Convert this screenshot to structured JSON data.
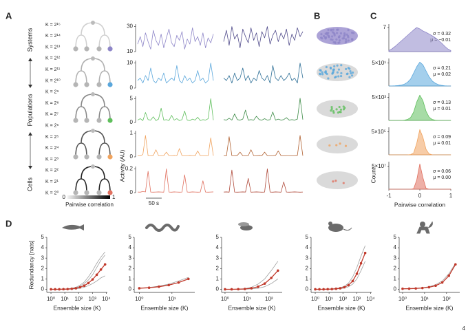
{
  "panel_labels": [
    "A",
    "B",
    "C",
    "D"
  ],
  "tree": {
    "k_labels": [
      "K = 2¹⁵",
      "K = 2¹⁴",
      "K = 2¹³",
      "K = 2¹²",
      "K = 2¹¹",
      "K = 2¹⁰",
      "K = 2⁹",
      "K = 2⁸",
      "K = 2⁷",
      "K = 2⁶",
      "K = 2⁵",
      "K = 2⁴",
      "K = 2³",
      "K = 2²",
      "K = 2¹",
      "K = 2⁰"
    ],
    "groups": [
      "Systems",
      "Populations",
      "Cells"
    ],
    "colorbar_lim": [
      0,
      1
    ],
    "colorbar_label": "Pairwise correlation"
  },
  "chart_data": [
    {
      "type": "line",
      "xlim": [
        0,
        240
      ],
      "ylim": [
        10,
        32
      ],
      "yticks": [
        10,
        30
      ],
      "color": "#8e86c8",
      "values": [
        16,
        22,
        14,
        25,
        18,
        12,
        27,
        19,
        15,
        24,
        13,
        21,
        28,
        17,
        14,
        23,
        19,
        26,
        12,
        20,
        16,
        29,
        18,
        22,
        15,
        25,
        13,
        21,
        17,
        24
      ]
    },
    {
      "type": "line",
      "xlim": [
        0,
        240
      ],
      "ylim": [
        10,
        32
      ],
      "color": "#4f4a8a",
      "values": [
        18,
        27,
        15,
        30,
        20,
        24,
        13,
        28,
        22,
        17,
        29,
        19,
        25,
        14,
        26,
        21,
        30,
        16,
        23,
        27,
        18,
        25,
        20,
        28,
        15,
        24,
        19,
        29,
        22,
        26
      ]
    },
    {
      "type": "line",
      "xlim": [
        0,
        240
      ],
      "ylim": [
        0,
        11
      ],
      "yticks": [
        0,
        10
      ],
      "color": "#5aa7dc",
      "values": [
        3,
        4,
        2,
        5,
        3,
        8,
        3,
        2,
        4,
        3,
        6,
        2,
        3,
        4,
        3,
        9,
        3,
        2,
        5,
        3,
        4,
        2,
        3,
        7,
        3,
        4,
        2,
        3,
        10,
        3
      ]
    },
    {
      "type": "line",
      "xlim": [
        0,
        240
      ],
      "ylim": [
        0,
        11
      ],
      "color": "#2c6e96",
      "values": [
        4,
        3,
        5,
        2,
        6,
        3,
        4,
        8,
        3,
        5,
        2,
        4,
        3,
        7,
        4,
        3,
        5,
        2,
        9,
        4,
        3,
        5,
        3,
        4,
        6,
        3,
        4,
        2,
        10,
        4
      ]
    },
    {
      "type": "line",
      "xlim": [
        0,
        240
      ],
      "ylim": [
        0,
        5.5
      ],
      "yticks": [
        0,
        5
      ],
      "color": "#5fbf5c",
      "values": [
        0.5,
        0.8,
        0.4,
        2.1,
        0.6,
        0.5,
        1.2,
        0.4,
        0.7,
        3.0,
        0.5,
        0.6,
        0.4,
        1.5,
        0.5,
        0.8,
        0.4,
        0.6,
        2.4,
        0.5,
        0.4,
        0.7,
        0.5,
        1.1,
        0.4,
        0.6,
        0.5,
        0.8,
        5.0,
        0.5
      ]
    },
    {
      "type": "line",
      "xlim": [
        0,
        240
      ],
      "ylim": [
        0,
        5.5
      ],
      "color": "#3a8a44",
      "values": [
        0.6,
        0.5,
        0.9,
        0.5,
        1.8,
        0.6,
        0.5,
        0.7,
        2.6,
        0.5,
        0.6,
        0.5,
        1.3,
        0.6,
        0.5,
        0.8,
        0.5,
        0.6,
        2.2,
        0.5,
        0.7,
        0.5,
        0.6,
        1.0,
        0.5,
        0.6,
        0.5,
        0.7,
        5.1,
        0.6
      ]
    },
    {
      "type": "line",
      "xlim": [
        0,
        240
      ],
      "ylim": [
        0,
        1.1
      ],
      "yticks": [
        0,
        1
      ],
      "color": "#f0a35e",
      "values": [
        0.05,
        0.04,
        0.1,
        0.9,
        0.05,
        0.04,
        0.06,
        0.3,
        0.05,
        0.04,
        0.05,
        0.2,
        0.05,
        0.04,
        0.06,
        0.05,
        0.35,
        0.05,
        0.04,
        0.05,
        0.06,
        0.05,
        0.04,
        0.25,
        0.05,
        0.05,
        0.04,
        0.05,
        0.8,
        0.05
      ]
    },
    {
      "type": "line",
      "xlim": [
        0,
        240
      ],
      "ylim": [
        0,
        1.1
      ],
      "color": "#b06030",
      "values": [
        0.05,
        0.04,
        0.85,
        0.05,
        0.04,
        0.06,
        0.2,
        0.05,
        0.04,
        0.05,
        0.3,
        0.05,
        0.04,
        0.06,
        0.05,
        0.2,
        0.05,
        0.04,
        0.05,
        0.06,
        0.25,
        0.05,
        0.04,
        0.05,
        0.05,
        0.04,
        0.05,
        0.06,
        0.9,
        0.05
      ]
    },
    {
      "type": "line",
      "xlim": [
        0,
        240
      ],
      "ylim": [
        0,
        0.22
      ],
      "yticks": [
        0,
        0.2
      ],
      "color": "#e0705f",
      "ylabel": "Activity (AU)",
      "scale_bar": {
        "value": 50,
        "label": "50 s"
      },
      "values": [
        0.005,
        0.004,
        0.01,
        0.006,
        0.18,
        0.005,
        0.004,
        0.005,
        0.006,
        0.005,
        0.004,
        0.2,
        0.005,
        0.004,
        0.006,
        0.005,
        0.004,
        0.005,
        0.15,
        0.005,
        0.004,
        0.006,
        0.005,
        0.004,
        0.005,
        0.1,
        0.005,
        0.004,
        0.005,
        0.006
      ]
    },
    {
      "type": "line",
      "xlim": [
        0,
        240
      ],
      "ylim": [
        0,
        0.22
      ],
      "color": "#b04a3a",
      "values": [
        0.005,
        0.006,
        0.004,
        0.19,
        0.005,
        0.004,
        0.005,
        0.006,
        0.005,
        0.12,
        0.004,
        0.005,
        0.006,
        0.005,
        0.004,
        0.005,
        0.2,
        0.005,
        0.004,
        0.006,
        0.005,
        0.004,
        0.09,
        0.005,
        0.004,
        0.005,
        0.006,
        0.005,
        0.004,
        0.005
      ]
    },
    {
      "type": "area",
      "xlim": [
        -1,
        1
      ],
      "ylim": [
        0,
        8
      ],
      "yticks": [
        7
      ],
      "color": "#8e86c8",
      "annotations": [
        "σ = 0.32",
        "μ = −0.01"
      ],
      "x": [
        -1,
        -0.9,
        -0.8,
        -0.7,
        -0.6,
        -0.5,
        -0.4,
        -0.3,
        -0.2,
        -0.1,
        0,
        0.1,
        0.2,
        0.3,
        0.4,
        0.5,
        0.6,
        0.7,
        0.8,
        0.9,
        1
      ],
      "values": [
        0.3,
        0.8,
        1.5,
        2.3,
        3.1,
        3.9,
        4.7,
        5.5,
        6.3,
        7.0,
        6.6,
        6.0,
        5.6,
        5.1,
        4.6,
        4.0,
        3.3,
        2.5,
        1.6,
        0.8,
        0.3
      ]
    },
    {
      "type": "area",
      "xlim": [
        -1,
        1
      ],
      "ylim": [
        0,
        60
      ],
      "yticks": [
        {
          "value": 50,
          "label": "5×10¹"
        }
      ],
      "color": "#5aa7dc",
      "annotations": [
        "σ = 0.21",
        "μ = 0.02"
      ],
      "x": [
        -1,
        -0.9,
        -0.8,
        -0.7,
        -0.6,
        -0.5,
        -0.4,
        -0.3,
        -0.2,
        -0.1,
        0,
        0.1,
        0.2,
        0.3,
        0.4,
        0.5,
        0.6,
        0.7,
        0.8,
        0.9,
        1
      ],
      "values": [
        0,
        0.2,
        0.5,
        1,
        2,
        4,
        8,
        15,
        28,
        42,
        52,
        46,
        33,
        20,
        11,
        6,
        3,
        1.5,
        0.6,
        0.2,
        0
      ]
    },
    {
      "type": "area",
      "xlim": [
        -1,
        1
      ],
      "ylim": [
        0,
        6000
      ],
      "yticks": [
        {
          "value": 5000,
          "label": "5×10³"
        }
      ],
      "color": "#5fbf5c",
      "annotations": [
        "σ = 0.13",
        "μ = 0.01"
      ],
      "x": [
        -1,
        -0.9,
        -0.8,
        -0.7,
        -0.6,
        -0.5,
        -0.4,
        -0.3,
        -0.2,
        -0.1,
        0,
        0.1,
        0.2,
        0.3,
        0.4,
        0.5,
        0.6,
        0.7,
        0.8,
        0.9,
        1
      ],
      "values": [
        0,
        0,
        0,
        0,
        0,
        50,
        200,
        600,
        1800,
        4000,
        5500,
        4300,
        2000,
        700,
        200,
        50,
        10,
        0,
        0,
        0,
        0
      ]
    },
    {
      "type": "area",
      "xlim": [
        -1,
        1
      ],
      "ylim": [
        0,
        600000
      ],
      "yticks": [
        {
          "value": 500000,
          "label": "5×10⁵"
        }
      ],
      "color": "#f0a35e",
      "annotations": [
        "σ = 0.09",
        "μ = 0.01"
      ],
      "x": [
        -1,
        -0.9,
        -0.8,
        -0.7,
        -0.6,
        -0.5,
        -0.4,
        -0.3,
        -0.2,
        -0.1,
        0,
        0.1,
        0.2,
        0.3,
        0.4,
        0.5,
        0.6,
        0.7,
        0.8,
        0.9,
        1
      ],
      "values": [
        0,
        0,
        0,
        0,
        0,
        0,
        0,
        5000,
        40000,
        250000,
        550000,
        380000,
        120000,
        20000,
        2000,
        0,
        0,
        0,
        0,
        0,
        0
      ]
    },
    {
      "type": "area",
      "xlim": [
        -1,
        1
      ],
      "ylim": [
        0,
        60000000
      ],
      "yticks": [
        {
          "value": 50000000,
          "label": "5×10⁷"
        }
      ],
      "xticks": [
        -1,
        0,
        1
      ],
      "color": "#e0705f",
      "annotations": [
        "σ = 0.06",
        "μ = 0.00"
      ],
      "xlabel": "Pairwise correlation",
      "ylabel": "Count",
      "x": [
        -1,
        -0.9,
        -0.8,
        -0.7,
        -0.6,
        -0.5,
        -0.4,
        -0.3,
        -0.2,
        -0.1,
        0,
        0.1,
        0.2,
        0.3,
        0.4,
        0.5,
        0.6,
        0.7,
        0.8,
        0.9,
        1
      ],
      "values": [
        0,
        0,
        0,
        0,
        0,
        0,
        0,
        0,
        1000000,
        20000000,
        55000000,
        25000000,
        2000000,
        0,
        0,
        0,
        0,
        0,
        0,
        0,
        0
      ]
    },
    {
      "type": "line",
      "xlog": true,
      "xlim": [
        0.5,
        12000
      ],
      "ylim": [
        -0.3,
        5
      ],
      "yticks": [
        0,
        1,
        2,
        3,
        4,
        5
      ],
      "xticks": [
        {
          "value": 1,
          "label": "10⁰"
        },
        {
          "value": 10,
          "label": "10¹"
        },
        {
          "value": 100,
          "label": "10²"
        },
        {
          "value": 1000,
          "label": "10³"
        },
        {
          "value": 10000,
          "label": "10⁴"
        }
      ],
      "xlabel": "Ensemble size (K)",
      "ylabel": "Redundancy [nats]",
      "x": [
        1,
        2,
        4,
        8,
        16,
        32,
        64,
        128,
        256,
        512,
        1024,
        2048,
        4096,
        8192
      ],
      "series": [
        {
          "color": "#a0a0a0",
          "values": [
            0,
            0,
            0,
            0.02,
            0.05,
            0.1,
            0.2,
            0.4,
            0.7,
            1.2,
            1.8,
            2.5,
            3.1,
            3.6
          ]
        },
        {
          "color": "#a0a0a0",
          "values": [
            0,
            0,
            0,
            0,
            0.01,
            0.02,
            0.05,
            0.1,
            0.2,
            0.35,
            0.55,
            0.8,
            1.1,
            1.3
          ]
        },
        {
          "color": "#a0a0a0",
          "values": [
            0,
            0,
            0.01,
            0.02,
            0.04,
            0.08,
            0.15,
            0.3,
            0.55,
            0.9,
            1.4,
            2.1,
            2.8,
            3.3
          ]
        },
        {
          "color": "#c0392b",
          "markers": true,
          "values": [
            0,
            0,
            0,
            0.01,
            0.02,
            0.05,
            0.1,
            0.2,
            0.35,
            0.6,
            0.95,
            1.4,
            1.9,
            2.4
          ]
        }
      ]
    },
    {
      "type": "line",
      "xlog": true,
      "xlim": [
        0.7,
        50
      ],
      "ylim": [
        -0.3,
        5
      ],
      "yticks": [
        0,
        1,
        2,
        3,
        4,
        5
      ],
      "xticks": [
        {
          "value": 1,
          "label": "10⁰"
        },
        {
          "value": 10,
          "label": "10¹"
        }
      ],
      "xlabel": "Ensemble size (K)",
      "x": [
        1,
        2,
        4,
        8,
        16,
        32
      ],
      "series": [
        {
          "color": "#a0a0a0",
          "values": [
            0.1,
            0.18,
            0.3,
            0.5,
            0.8,
            1.15
          ]
        },
        {
          "color": "#c0392b",
          "markers": true,
          "values": [
            0.1,
            0.15,
            0.25,
            0.4,
            0.65,
            1.0
          ]
        }
      ]
    },
    {
      "type": "line",
      "xlog": true,
      "xlim": [
        0.7,
        400
      ],
      "ylim": [
        -0.3,
        5
      ],
      "yticks": [
        0,
        1,
        2,
        3,
        4,
        5
      ],
      "xticks": [
        {
          "value": 1,
          "label": "10⁰"
        },
        {
          "value": 10,
          "label": "10¹"
        },
        {
          "value": 100,
          "label": "10²"
        }
      ],
      "xlabel": "Ensemble size (K)",
      "x": [
        1,
        2,
        4,
        8,
        16,
        32,
        64,
        128,
        256
      ],
      "series": [
        {
          "color": "#a0a0a0",
          "values": [
            0,
            0,
            0.02,
            0.06,
            0.2,
            0.5,
            1.0,
            1.8,
            2.7
          ]
        },
        {
          "color": "#a0a0a0",
          "values": [
            0,
            0,
            0,
            0.01,
            0.04,
            0.1,
            0.25,
            0.55,
            1.0
          ]
        },
        {
          "color": "#c0392b",
          "markers": true,
          "values": [
            0,
            0,
            0.01,
            0.03,
            0.1,
            0.25,
            0.55,
            1.1,
            1.8
          ]
        }
      ]
    },
    {
      "type": "line",
      "xlog": true,
      "xlim": [
        0.5,
        12000
      ],
      "ylim": [
        -0.3,
        5
      ],
      "yticks": [
        0,
        1,
        2,
        3,
        4,
        5
      ],
      "xticks": [
        {
          "value": 1,
          "label": "10⁰"
        },
        {
          "value": 10,
          "label": "10¹"
        },
        {
          "value": 100,
          "label": "10²"
        },
        {
          "value": 1000,
          "label": "10³"
        },
        {
          "value": 10000,
          "label": "10⁴"
        }
      ],
      "xlabel": "Ensemble size (K)",
      "x": [
        1,
        2,
        4,
        8,
        16,
        32,
        64,
        128,
        256,
        512,
        1024,
        2048,
        4096
      ],
      "series": [
        {
          "color": "#a0a0a0",
          "values": [
            0,
            0,
            0.01,
            0.02,
            0.04,
            0.08,
            0.15,
            0.3,
            0.6,
            1.2,
            2.1,
            3.2,
            4.2
          ]
        },
        {
          "color": "#a0a0a0",
          "values": [
            0,
            0,
            0,
            0,
            0.01,
            0.03,
            0.06,
            0.12,
            0.25,
            0.5,
            1.0,
            1.8,
            2.7
          ]
        },
        {
          "color": "#c0392b",
          "markers": true,
          "values": [
            0,
            0,
            0,
            0.01,
            0.02,
            0.05,
            0.1,
            0.2,
            0.4,
            0.8,
            1.5,
            2.5,
            3.5
          ]
        }
      ]
    },
    {
      "type": "line",
      "xlog": true,
      "xlim": [
        0.7,
        400
      ],
      "ylim": [
        -0.3,
        5
      ],
      "yticks": [
        0,
        1,
        2,
        3,
        4,
        5
      ],
      "xticks": [
        {
          "value": 1,
          "label": "10⁰"
        },
        {
          "value": 10,
          "label": "10¹"
        },
        {
          "value": 100,
          "label": "10²"
        }
      ],
      "xlabel": "Ensemble size (K)",
      "x": [
        1,
        2,
        4,
        8,
        16,
        32,
        64,
        128,
        256
      ],
      "series": [
        {
          "color": "#a0a0a0",
          "values": [
            0.05,
            0.07,
            0.1,
            0.15,
            0.25,
            0.45,
            0.8,
            1.5,
            2.5
          ]
        },
        {
          "color": "#c0392b",
          "markers": true,
          "values": [
            0.05,
            0.06,
            0.08,
            0.12,
            0.2,
            0.35,
            0.65,
            1.3,
            2.4
          ]
        }
      ]
    }
  ],
  "page_number": 4
}
